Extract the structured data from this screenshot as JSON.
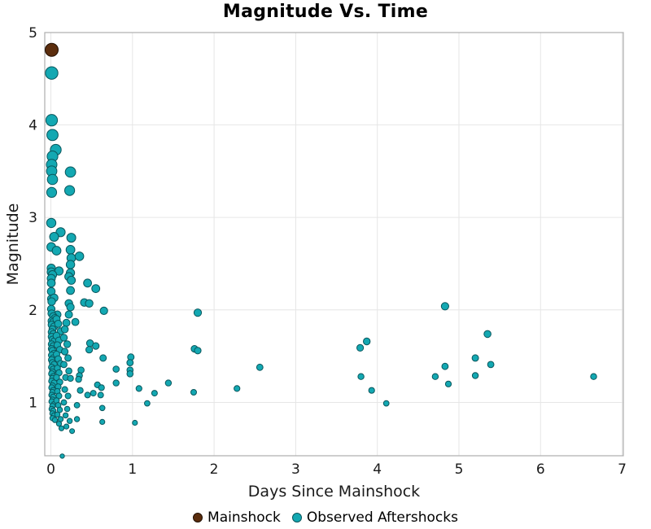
{
  "title": "Magnitude Vs. Time",
  "x_axis": {
    "label": "Days Since Mainshock",
    "ticks": [
      0,
      1,
      2,
      3,
      4,
      5,
      6,
      7
    ]
  },
  "y_axis": {
    "label": "Magnitude",
    "ticks": [
      1,
      2,
      3,
      4,
      5
    ]
  },
  "legend": [
    {
      "label": "Mainshock",
      "color": "#5b2d0d",
      "edge": "#200e02"
    },
    {
      "label": "Observed Aftershocks",
      "color": "#13a8b2",
      "edge": "#0a565c"
    }
  ],
  "colors": {
    "mainshock_fill": "#5b2d0d",
    "mainshock_edge": "#200e02",
    "aftershock_fill": "#13a8b2",
    "aftershock_edge": "#0a565c",
    "gridline": "#e6e6e6",
    "panel_border": "#adadad",
    "text": "#1a1a1a",
    "background": "#ffffff"
  },
  "chart_data": {
    "type": "scatter",
    "title": "Magnitude Vs. Time",
    "xlabel": "Days Since Mainshock",
    "ylabel": "Magnitude",
    "xlim": [
      -0.08,
      7.02
    ],
    "ylim": [
      0.42,
      5.0
    ],
    "grid": true,
    "legend_position": "bottom",
    "marker_size": "radius_px = 2.2 + 1.2 * magnitude",
    "series": [
      {
        "name": "Mainshock",
        "color": "#5b2d0d",
        "edge": "#200e02",
        "points": [
          [
            0.01,
            4.81
          ]
        ]
      },
      {
        "name": "Observed Aftershocks",
        "color": "#13a8b2",
        "edge": "#0a565c",
        "points": [
          [
            0.01,
            4.56
          ],
          [
            0.01,
            4.05
          ],
          [
            0.02,
            3.89
          ],
          [
            0.06,
            3.73
          ],
          [
            0.02,
            3.66
          ],
          [
            0.01,
            3.57
          ],
          [
            0.01,
            3.5
          ],
          [
            0.02,
            3.41
          ],
          [
            0.24,
            3.49
          ],
          [
            0.01,
            3.27
          ],
          [
            0.23,
            3.29
          ],
          [
            0.005,
            2.94
          ],
          [
            0.12,
            2.84
          ],
          [
            0.04,
            2.79
          ],
          [
            0.25,
            2.78
          ],
          [
            0.005,
            2.68
          ],
          [
            0.07,
            2.64
          ],
          [
            0.24,
            2.65
          ],
          [
            0.25,
            2.56
          ],
          [
            0.35,
            2.58
          ],
          [
            0.24,
            2.49
          ],
          [
            0.005,
            2.45
          ],
          [
            0.005,
            2.41
          ],
          [
            0.1,
            2.42
          ],
          [
            0.02,
            2.38
          ],
          [
            0.24,
            2.4
          ],
          [
            0.005,
            2.34
          ],
          [
            0.22,
            2.36
          ],
          [
            0.25,
            2.32
          ],
          [
            0.005,
            2.29
          ],
          [
            0.45,
            2.29
          ],
          [
            0.24,
            2.21
          ],
          [
            0.005,
            2.2
          ],
          [
            0.55,
            2.23
          ],
          [
            0.005,
            2.12
          ],
          [
            0.04,
            2.13
          ],
          [
            0.01,
            2.09
          ],
          [
            0.22,
            2.07
          ],
          [
            0.24,
            2.03
          ],
          [
            0.41,
            2.08
          ],
          [
            0.47,
            2.07
          ],
          [
            0.005,
            2.01
          ],
          [
            4.83,
            2.04
          ],
          [
            0.65,
            1.99
          ],
          [
            1.8,
            1.97
          ],
          [
            0.22,
            1.95
          ],
          [
            0.08,
            1.95
          ],
          [
            0.01,
            1.96
          ],
          [
            0.03,
            1.93
          ],
          [
            0.05,
            1.91
          ],
          [
            0.01,
            1.88
          ],
          [
            0.03,
            1.87
          ],
          [
            0.01,
            1.84
          ],
          [
            0.04,
            1.82
          ],
          [
            0.02,
            1.79
          ],
          [
            0.01,
            1.76
          ],
          [
            0.03,
            1.74
          ],
          [
            0.01,
            1.71
          ],
          [
            0.02,
            1.68
          ],
          [
            0.04,
            1.66
          ],
          [
            0.01,
            1.63
          ],
          [
            0.03,
            1.61
          ],
          [
            0.01,
            1.58
          ],
          [
            0.02,
            1.56
          ],
          [
            0.04,
            1.53
          ],
          [
            0.01,
            1.51
          ],
          [
            0.03,
            1.48
          ],
          [
            0.01,
            1.46
          ],
          [
            0.02,
            1.43
          ],
          [
            0.04,
            1.41
          ],
          [
            0.01,
            1.38
          ],
          [
            0.03,
            1.36
          ],
          [
            0.02,
            1.33
          ],
          [
            0.01,
            1.31
          ],
          [
            0.03,
            1.28
          ],
          [
            0.02,
            1.26
          ],
          [
            0.01,
            1.23
          ],
          [
            0.04,
            1.21
          ],
          [
            0.02,
            1.18
          ],
          [
            0.01,
            1.16
          ],
          [
            0.03,
            1.13
          ],
          [
            0.02,
            1.11
          ],
          [
            0.01,
            1.08
          ],
          [
            0.03,
            1.06
          ],
          [
            0.02,
            1.03
          ],
          [
            0.01,
            1.01
          ],
          [
            0.04,
            0.98
          ],
          [
            0.02,
            0.96
          ],
          [
            0.01,
            0.93
          ],
          [
            0.03,
            0.91
          ],
          [
            0.02,
            0.88
          ],
          [
            0.04,
            0.86
          ],
          [
            0.02,
            0.83
          ],
          [
            0.05,
            0.81
          ],
          [
            0.07,
            1.9
          ],
          [
            0.09,
            1.85
          ],
          [
            0.12,
            1.77
          ],
          [
            0.07,
            1.72
          ],
          [
            0.1,
            1.67
          ],
          [
            0.08,
            1.62
          ],
          [
            0.11,
            1.57
          ],
          [
            0.07,
            1.52
          ],
          [
            0.09,
            1.47
          ],
          [
            0.12,
            1.42
          ],
          [
            0.08,
            1.37
          ],
          [
            0.1,
            1.32
          ],
          [
            0.07,
            1.27
          ],
          [
            0.11,
            1.22
          ],
          [
            0.09,
            1.17
          ],
          [
            0.08,
            1.12
          ],
          [
            0.1,
            1.07
          ],
          [
            0.07,
            1.02
          ],
          [
            0.09,
            0.97
          ],
          [
            0.11,
            0.92
          ],
          [
            0.08,
            0.87
          ],
          [
            0.12,
            0.82
          ],
          [
            0.1,
            0.77
          ],
          [
            0.13,
            0.72
          ],
          [
            0.14,
            0.42
          ],
          [
            0.19,
            1.86
          ],
          [
            0.17,
            1.79
          ],
          [
            0.16,
            1.7
          ],
          [
            0.2,
            1.63
          ],
          [
            0.17,
            1.55
          ],
          [
            0.21,
            1.48
          ],
          [
            0.16,
            1.41
          ],
          [
            0.22,
            1.34
          ],
          [
            0.18,
            1.27
          ],
          [
            0.24,
            1.26
          ],
          [
            0.17,
            1.14
          ],
          [
            0.21,
            1.07
          ],
          [
            0.16,
            1.0
          ],
          [
            0.2,
            0.93
          ],
          [
            0.18,
            0.86
          ],
          [
            0.23,
            0.8
          ],
          [
            0.19,
            0.74
          ],
          [
            0.26,
            0.69
          ],
          [
            0.3,
            1.87
          ],
          [
            0.37,
            1.35
          ],
          [
            0.35,
            1.29
          ],
          [
            0.34,
            1.25
          ],
          [
            0.48,
            1.64
          ],
          [
            0.55,
            1.61
          ],
          [
            0.47,
            1.57
          ],
          [
            0.64,
            1.48
          ],
          [
            0.57,
            1.19
          ],
          [
            0.62,
            1.16
          ],
          [
            0.36,
            1.13
          ],
          [
            0.45,
            1.08
          ],
          [
            0.52,
            1.1
          ],
          [
            0.61,
            1.08
          ],
          [
            0.63,
            0.94
          ],
          [
            0.32,
            0.97
          ],
          [
            0.32,
            0.82
          ],
          [
            0.63,
            0.79
          ],
          [
            0.8,
            1.36
          ],
          [
            0.8,
            1.21
          ],
          [
            0.98,
            1.49
          ],
          [
            0.97,
            1.43
          ],
          [
            0.97,
            1.35
          ],
          [
            0.97,
            1.31
          ],
          [
            1.08,
            1.15
          ],
          [
            1.18,
            0.99
          ],
          [
            1.03,
            0.78
          ],
          [
            1.27,
            1.1
          ],
          [
            1.44,
            1.21
          ],
          [
            1.76,
            1.58
          ],
          [
            1.8,
            1.56
          ],
          [
            1.75,
            1.11
          ],
          [
            2.28,
            1.15
          ],
          [
            2.56,
            1.38
          ],
          [
            3.79,
            1.59
          ],
          [
            3.87,
            1.66
          ],
          [
            3.8,
            1.28
          ],
          [
            3.93,
            1.13
          ],
          [
            4.11,
            0.99
          ],
          [
            4.71,
            1.28
          ],
          [
            4.83,
            1.39
          ],
          [
            4.87,
            1.2
          ],
          [
            5.2,
            1.48
          ],
          [
            5.2,
            1.29
          ],
          [
            5.35,
            1.74
          ],
          [
            5.39,
            1.41
          ],
          [
            6.65,
            1.28
          ]
        ]
      }
    ]
  }
}
